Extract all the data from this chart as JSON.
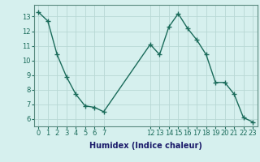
{
  "x": [
    0,
    1,
    2,
    3,
    4,
    5,
    6,
    7,
    12,
    13,
    14,
    15,
    16,
    17,
    18,
    19,
    20,
    21,
    22,
    23
  ],
  "y": [
    13.3,
    12.7,
    10.4,
    8.9,
    7.7,
    6.9,
    6.8,
    6.5,
    11.1,
    10.4,
    12.3,
    13.2,
    12.2,
    11.4,
    10.4,
    8.5,
    8.5,
    7.7,
    6.1,
    5.8
  ],
  "line_color": "#1a6b5a",
  "marker": "+",
  "marker_size": 4,
  "marker_lw": 1.0,
  "line_width": 1.0,
  "bg_color": "#d6f0ee",
  "grid_color": "#b8d8d4",
  "xlabel": "Humidex (Indice chaleur)",
  "ylim": [
    5.5,
    13.8
  ],
  "xlim": [
    -0.5,
    23.5
  ],
  "yticks": [
    6,
    7,
    8,
    9,
    10,
    11,
    12,
    13
  ],
  "xticks": [
    0,
    1,
    2,
    3,
    4,
    5,
    6,
    7,
    12,
    13,
    14,
    15,
    16,
    17,
    18,
    19,
    20,
    21,
    22,
    23
  ],
  "xtick_labels": [
    "0",
    "1",
    "2",
    "3",
    "4",
    "5",
    "6",
    "7",
    "12",
    "13",
    "14",
    "15",
    "16",
    "17",
    "18",
    "19",
    "20",
    "21",
    "22",
    "23"
  ],
  "tick_color": "#1a6b5a",
  "label_color": "#1a1a6a",
  "spine_color": "#5a8a80",
  "tick_fontsize": 6,
  "xlabel_fontsize": 7
}
